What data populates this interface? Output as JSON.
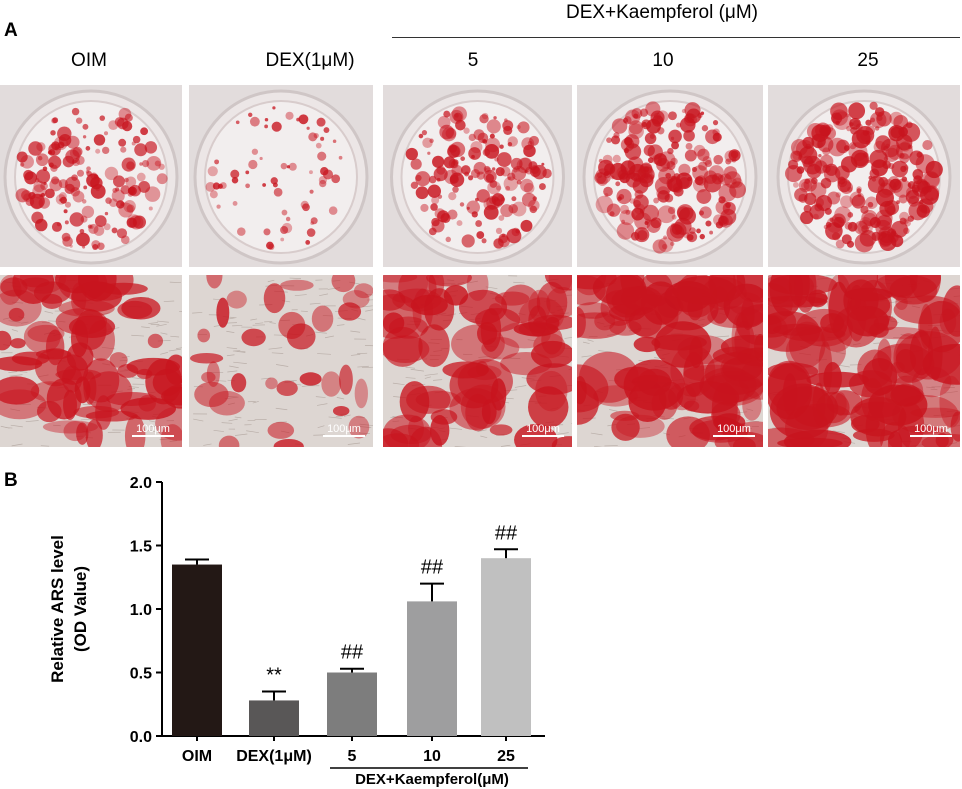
{
  "panel_a": {
    "label": "A",
    "group_title": "DEX+Kaempferol (μM)",
    "columns": [
      "OIM",
      "DEX(1μM)",
      "5",
      "10",
      "25"
    ],
    "scale_bar_label": "100μm"
  },
  "panel_b": {
    "label": "B"
  },
  "colors": {
    "stain_red": "#c8141e",
    "bar_oim": "#231815",
    "bar_dex": "#595757",
    "bar_k5": "#7d7d7d",
    "bar_k10": "#9e9e9f",
    "bar_k25": "#c0c0c0"
  },
  "chart_data": {
    "type": "bar",
    "categories": [
      "OIM",
      "DEX(1μM)",
      "5",
      "10",
      "25"
    ],
    "values": [
      1.35,
      0.28,
      0.5,
      1.06,
      1.4
    ],
    "errors": [
      0.04,
      0.07,
      0.03,
      0.14,
      0.07
    ],
    "annotations": [
      "",
      "**",
      "##",
      "##",
      "##"
    ],
    "ylabel_line1": "Relative ARS level",
    "ylabel_line2": "(OD Value)",
    "group_label": "DEX+Kaempferol(μM)",
    "ylim": [
      0.0,
      2.0
    ],
    "yticks": [
      "0.0",
      "0.5",
      "1.0",
      "1.5",
      "2.0"
    ],
    "grid": false
  }
}
